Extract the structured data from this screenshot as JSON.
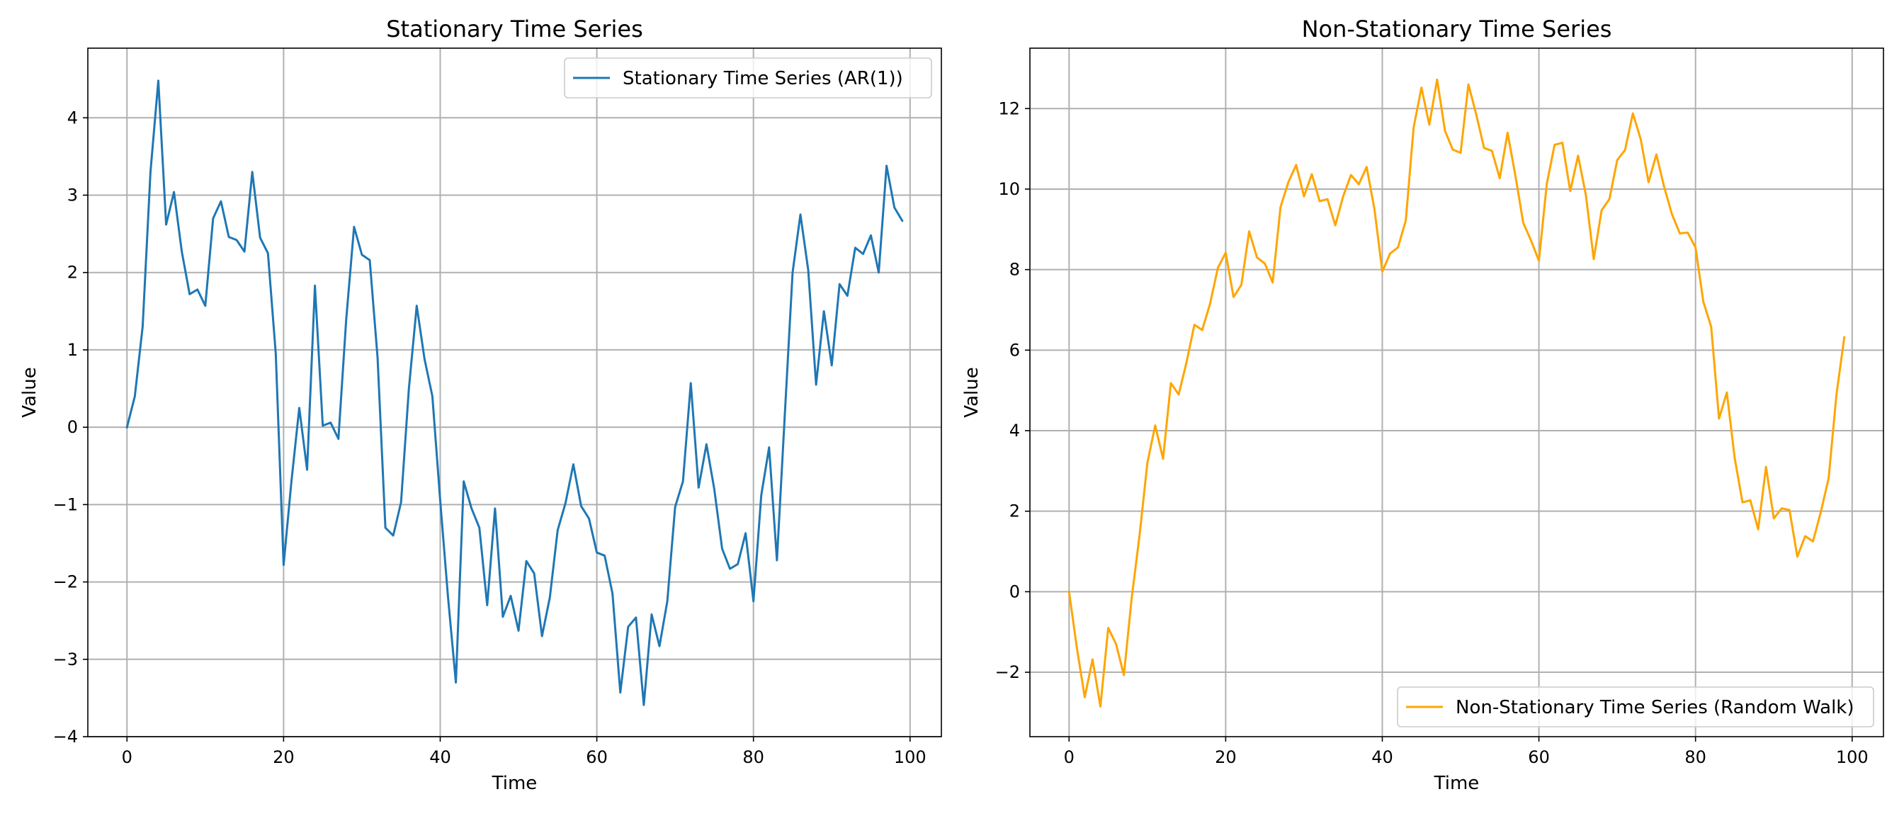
{
  "chart_data": [
    {
      "type": "line",
      "title": "Stationary Time Series",
      "xlabel": "Time",
      "ylabel": "Value",
      "xlim": [
        -5,
        104
      ],
      "ylim": [
        -4,
        4.9
      ],
      "xticks": [
        0,
        20,
        40,
        60,
        80,
        100
      ],
      "yticks": [
        -4,
        -3,
        -2,
        -1,
        0,
        1,
        2,
        3,
        4
      ],
      "grid": true,
      "legend_position": "upper-right",
      "series": [
        {
          "name": "Stationary Time Series (AR(1))",
          "color": "#1f77b4",
          "x": [
            0,
            1,
            2,
            3,
            4,
            5,
            6,
            7,
            8,
            9,
            10,
            11,
            12,
            13,
            14,
            15,
            16,
            17,
            18,
            19,
            20,
            21,
            22,
            23,
            24,
            25,
            26,
            27,
            28,
            29,
            30,
            31,
            32,
            33,
            34,
            35,
            36,
            37,
            38,
            39,
            40,
            41,
            42,
            43,
            44,
            45,
            46,
            47,
            48,
            49,
            50,
            51,
            52,
            53,
            54,
            55,
            56,
            57,
            58,
            59,
            60,
            61,
            62,
            63,
            64,
            65,
            66,
            67,
            68,
            69,
            70,
            71,
            72,
            73,
            74,
            75,
            76,
            77,
            78,
            79,
            80,
            81,
            82,
            83,
            84,
            85,
            86,
            87,
            88,
            89,
            90,
            91,
            92,
            93,
            94,
            95,
            96,
            97,
            98,
            99
          ],
          "values": [
            0.0,
            0.4,
            1.3,
            3.3,
            4.48,
            2.62,
            3.04,
            2.27,
            1.72,
            1.78,
            1.57,
            2.7,
            2.92,
            2.46,
            2.42,
            2.27,
            3.3,
            2.45,
            2.25,
            0.95,
            -1.78,
            -0.7,
            0.25,
            -0.55,
            1.83,
            0.02,
            0.06,
            -0.15,
            1.4,
            2.59,
            2.23,
            2.16,
            0.9,
            -1.3,
            -1.4,
            -0.97,
            0.5,
            1.57,
            0.88,
            0.4,
            -0.95,
            -2.2,
            -3.3,
            -0.7,
            -1.05,
            -1.3,
            -2.3,
            -1.05,
            -2.45,
            -2.18,
            -2.63,
            -1.73,
            -1.89,
            -2.7,
            -2.2,
            -1.33,
            -0.98,
            -0.48,
            -1.02,
            -1.18,
            -1.62,
            -1.66,
            -2.15,
            -3.43,
            -2.58,
            -2.46,
            -3.59,
            -2.42,
            -2.83,
            -2.25,
            -1.03,
            -0.7,
            0.57,
            -0.78,
            -0.22,
            -0.8,
            -1.57,
            -1.83,
            -1.77,
            -1.37,
            -2.25,
            -0.88,
            -0.26,
            -1.72,
            0.15,
            2.0,
            2.75,
            2.03,
            0.55,
            1.5,
            0.8,
            1.85,
            1.7,
            2.32,
            2.24,
            2.48,
            2.0,
            3.38,
            2.84,
            2.67
          ]
        }
      ]
    },
    {
      "type": "line",
      "title": "Non-Stationary Time Series",
      "xlabel": "Time",
      "ylabel": "Value",
      "xlim": [
        -5,
        104
      ],
      "ylim": [
        -3.6,
        13.5
      ],
      "xticks": [
        0,
        20,
        40,
        60,
        80,
        100
      ],
      "yticks": [
        -2,
        0,
        2,
        4,
        6,
        8,
        10,
        12
      ],
      "grid": true,
      "legend_position": "lower-right",
      "series": [
        {
          "name": "Non-Stationary Time Series (Random Walk)",
          "color": "#ffa500",
          "x": [
            0,
            1,
            2,
            3,
            4,
            5,
            6,
            7,
            8,
            9,
            10,
            11,
            12,
            13,
            14,
            15,
            16,
            17,
            18,
            19,
            20,
            21,
            22,
            23,
            24,
            25,
            26,
            27,
            28,
            29,
            30,
            31,
            32,
            33,
            34,
            35,
            36,
            37,
            38,
            39,
            40,
            41,
            42,
            43,
            44,
            45,
            46,
            47,
            48,
            49,
            50,
            51,
            52,
            53,
            54,
            55,
            56,
            57,
            58,
            59,
            60,
            61,
            62,
            63,
            64,
            65,
            66,
            67,
            68,
            69,
            70,
            71,
            72,
            73,
            74,
            75,
            76,
            77,
            78,
            79,
            80,
            81,
            82,
            83,
            84,
            85,
            86,
            87,
            88,
            89,
            90,
            91,
            92,
            93,
            94,
            95,
            96,
            97,
            98,
            99
          ],
          "values": [
            0.0,
            -1.4,
            -2.62,
            -1.68,
            -2.85,
            -0.9,
            -1.3,
            -2.07,
            -0.15,
            1.4,
            3.2,
            4.13,
            3.3,
            5.18,
            4.9,
            5.7,
            6.63,
            6.5,
            7.15,
            8.04,
            8.42,
            7.32,
            7.62,
            8.95,
            8.3,
            8.15,
            7.68,
            9.55,
            10.17,
            10.6,
            9.82,
            10.37,
            9.7,
            9.75,
            9.1,
            9.82,
            10.35,
            10.12,
            10.55,
            9.5,
            7.95,
            8.4,
            8.55,
            9.22,
            11.53,
            12.52,
            11.6,
            12.72,
            11.45,
            10.98,
            10.9,
            12.6,
            11.85,
            11.02,
            10.95,
            10.27,
            11.4,
            10.33,
            9.16,
            8.72,
            8.22,
            10.12,
            11.1,
            11.15,
            9.95,
            10.83,
            9.85,
            8.26,
            9.47,
            9.75,
            10.72,
            10.97,
            11.88,
            11.24,
            10.17,
            10.86,
            10.05,
            9.37,
            8.9,
            8.92,
            8.55,
            7.2,
            6.58,
            4.3,
            4.95,
            3.32,
            2.22,
            2.27,
            1.55,
            3.1,
            1.82,
            2.07,
            2.03,
            0.87,
            1.38,
            1.25,
            1.98,
            2.82,
            4.9,
            6.32
          ]
        }
      ]
    }
  ]
}
